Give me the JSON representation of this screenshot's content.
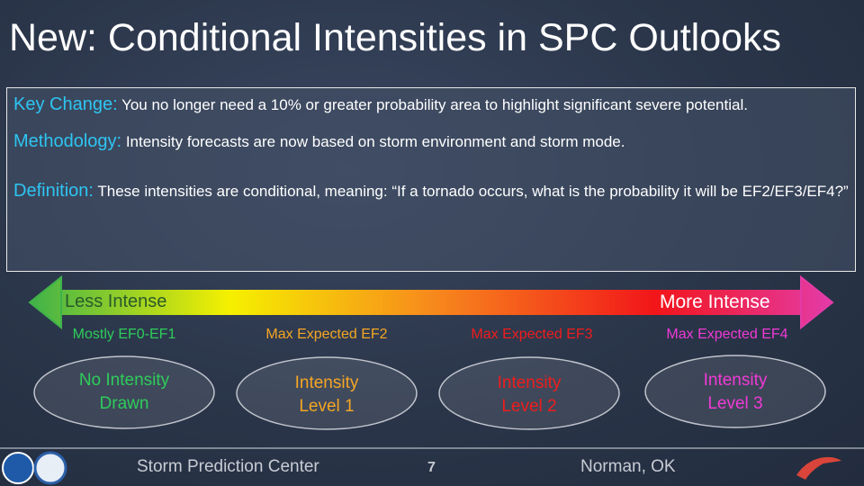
{
  "title": "New: Conditional Intensities in SPC Outlooks",
  "info": [
    {
      "label": "Key Change:",
      "text": "You no longer need a 10% or greater probability area to highlight significant severe potential."
    },
    {
      "label": "Methodology:",
      "text": "Intensity forecasts are now based on storm environment and storm mode."
    },
    {
      "label": "Definition:",
      "text": "These intensities are conditional, meaning: “If a tornado occurs, what is the probability it will be EF2/EF3/EF4?”"
    }
  ],
  "scale": {
    "left": "Less Intense",
    "right": "More Intense"
  },
  "levels": [
    {
      "caption": "Mostly EF0-EF1",
      "lines": [
        "No Intensity",
        "Drawn"
      ]
    },
    {
      "caption": "Max Expected EF2",
      "lines": [
        "Intensity",
        "Level 1"
      ]
    },
    {
      "caption": "Max Expected EF3",
      "lines": [
        "Intensity",
        "Level 2"
      ]
    },
    {
      "caption": "Max Expected EF4",
      "lines": [
        "Intensity",
        "Level 3"
      ]
    }
  ],
  "footer": {
    "left": "Storm Prediction Center",
    "page": 7,
    "right": "Norman, OK"
  }
}
